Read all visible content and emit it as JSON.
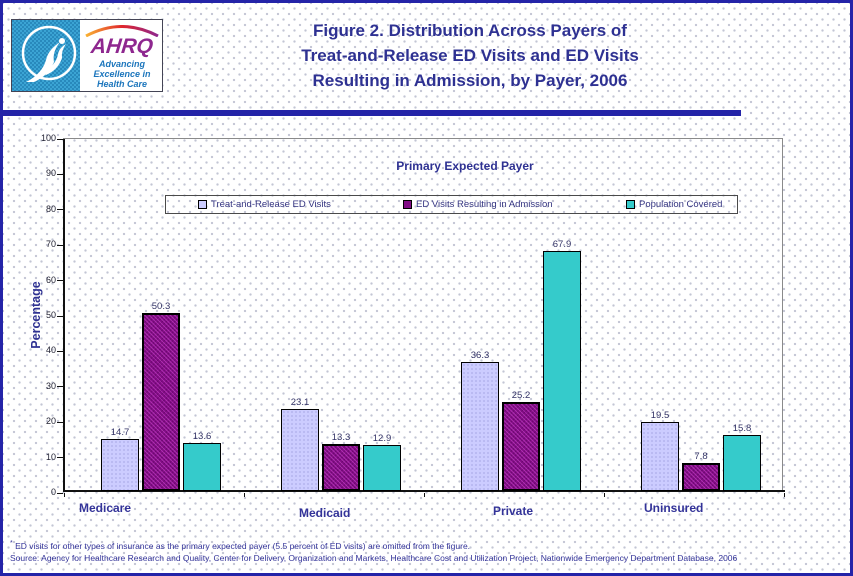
{
  "header": {
    "logo": {
      "ahrq_wordmark": "AHRQ",
      "tagline_lines": [
        "Advancing",
        "Excellence in",
        "Health Care"
      ]
    },
    "title_lines": [
      "Figure 2. Distribution Across Payers of",
      "Treat-and-Release ED Visits and ED Visits",
      "Resulting in Admission, by Payer, 2006"
    ]
  },
  "chart_data": {
    "type": "bar",
    "title": "Primary Expected Payer",
    "ylabel": "Percentage",
    "ylim": [
      0,
      100
    ],
    "ytick_interval": 10,
    "grid": false,
    "legend_position": "top-inside",
    "categories": [
      "Medicare",
      "Medicaid",
      "Private",
      "Uninsured"
    ],
    "series": [
      {
        "name": "Treat-and-Release ED Visits",
        "color": "#CCCCFF",
        "values": [
          14.7,
          23.1,
          36.3,
          19.5
        ]
      },
      {
        "name": "ED Visits Resulting in Admission",
        "color": "#820C86",
        "values": [
          50.3,
          13.3,
          25.2,
          7.8
        ]
      },
      {
        "name": "Population Covered",
        "color": "#35CBCB",
        "values": [
          13.6,
          12.9,
          67.9,
          15.8
        ]
      }
    ]
  },
  "footnotes": {
    "note_marker": "*",
    "note": " ED visits for other types of insurance as the primary expected payer (5.5 percent of ED visits) are omitted from the figure.",
    "source": "Source: Agency for Healthcare Research and Quality, Center for Delivery, Organization and Markets, Healthcare Cost and Utilization Project, Nationwide Emergency Department Database, 2006"
  },
  "colors": {
    "page_border": "#2424A8",
    "title_text": "#2E3192",
    "value_label_text": "#333366",
    "category_text": "#333399"
  }
}
